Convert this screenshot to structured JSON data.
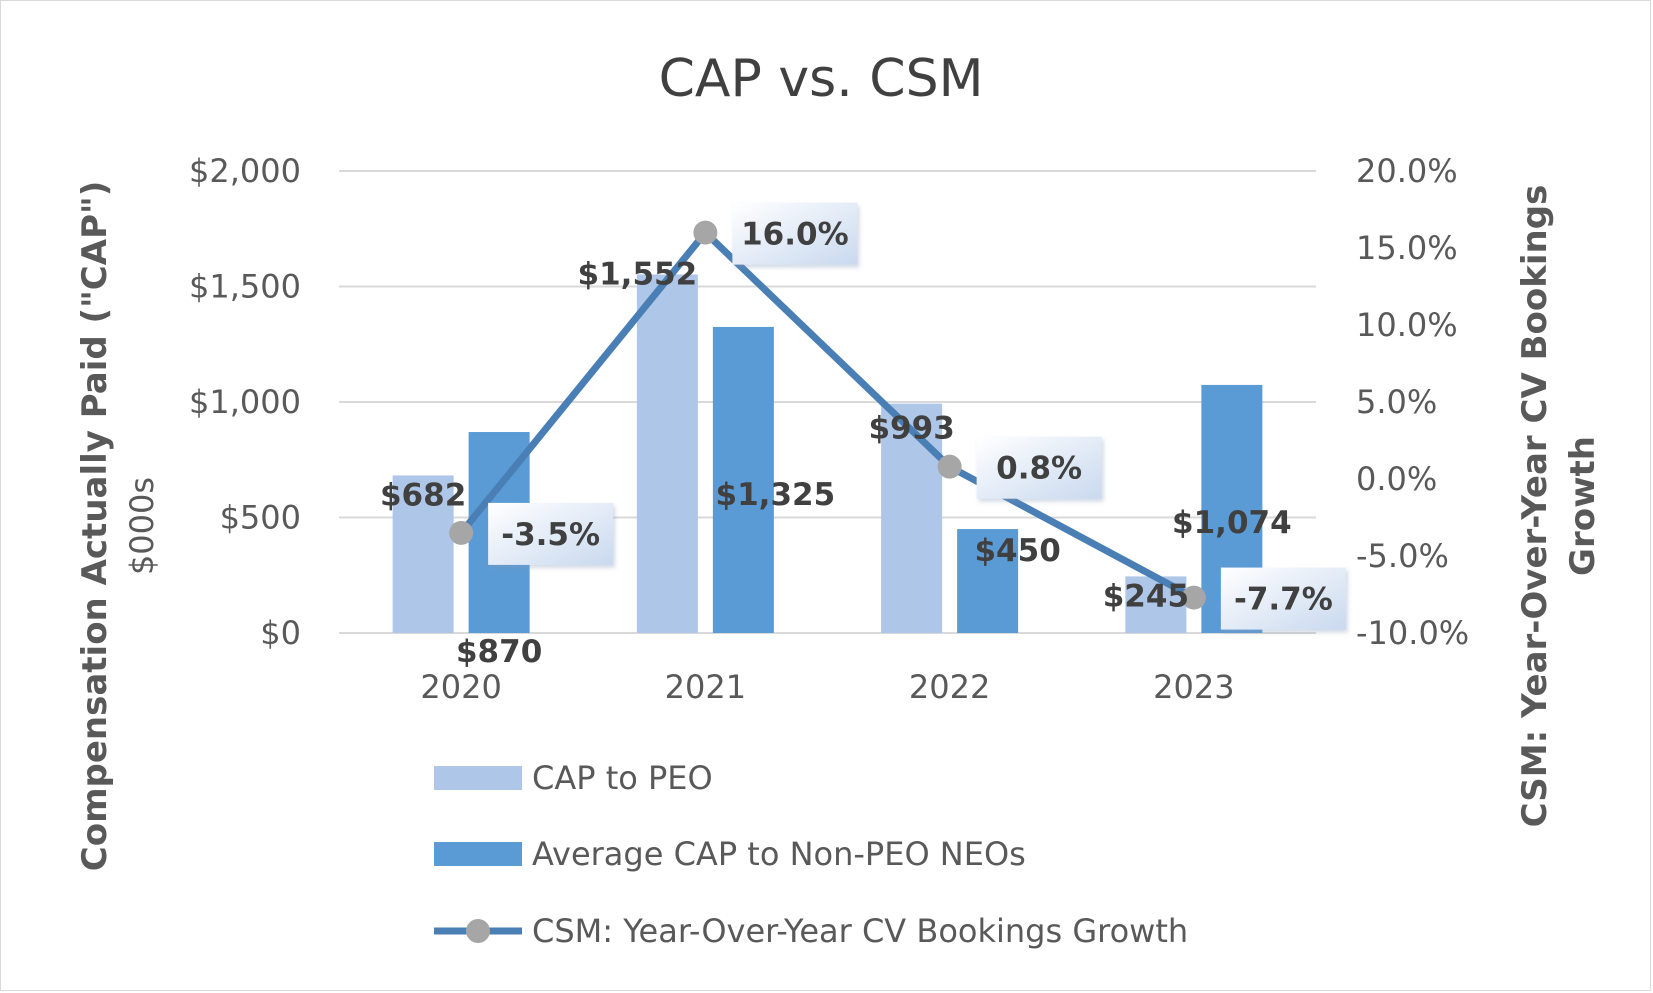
{
  "chart_data": {
    "type": "bar",
    "title": "CAP vs. CSM",
    "categories": [
      "2020",
      "2021",
      "2022",
      "2023"
    ],
    "y_axis": {
      "label": "Compensation Actually Paid (\"CAP\")",
      "sublabel": "$000s",
      "range": [
        0,
        2000
      ],
      "ticks": [
        0,
        500,
        1000,
        1500,
        2000
      ],
      "tick_labels": [
        "$0",
        "$500",
        "$1,000",
        "$1,500",
        "$2,000"
      ]
    },
    "y2_axis": {
      "label": "CSM: Year-Over-Year CV Bookings Growth",
      "label_line1": "CSM: Year-Over-Year CV Bookings",
      "label_line2": "Growth",
      "range": [
        -10,
        20
      ],
      "ticks": [
        -10,
        -5,
        0,
        5,
        10,
        15,
        20
      ],
      "tick_labels": [
        "-10.0%",
        "-5.0%",
        "0.0%",
        "5.0%",
        "10.0%",
        "15.0%",
        "20.0%"
      ]
    },
    "series": [
      {
        "name": "CAP to PEO",
        "type": "bar",
        "color": "#aec6e8",
        "values": [
          682,
          1552,
          993,
          245
        ],
        "labels": [
          "$682",
          "$1,552",
          "$993",
          "$245"
        ]
      },
      {
        "name": "Average CAP to Non-PEO NEOs",
        "type": "bar",
        "color": "#5b9bd5",
        "values": [
          870,
          1325,
          450,
          1074
        ],
        "labels": [
          "$870",
          "$1,325",
          "$450",
          "$1,074"
        ]
      },
      {
        "name": "CSM: Year-Over-Year CV Bookings Growth",
        "type": "line",
        "axis": "y2",
        "color": "#4a7fb5",
        "marker_color": "#a6a6a6",
        "values": [
          -3.5,
          16.0,
          0.8,
          -7.7
        ],
        "labels": [
          "-3.5%",
          "16.0%",
          "0.8%",
          "-7.7%"
        ]
      }
    ],
    "legend": {
      "position": "bottom",
      "entries": [
        "CAP to PEO",
        "Average CAP to Non-PEO NEOs",
        "CSM: Year-Over-Year CV Bookings Growth"
      ]
    },
    "grid": true
  }
}
